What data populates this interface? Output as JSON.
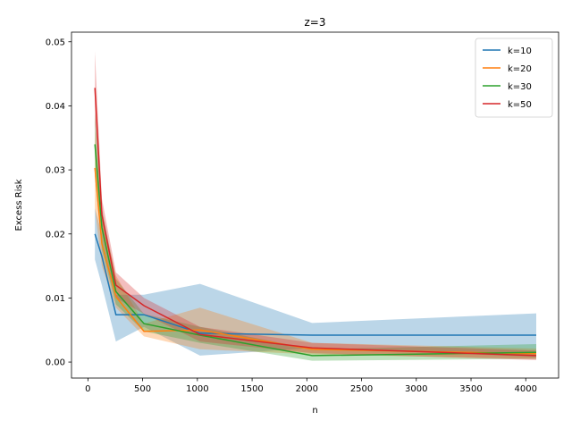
{
  "chart_data": {
    "type": "line",
    "title": "z=3",
    "xlabel": "n",
    "ylabel": "Excess Risk",
    "xlim": [
      -150,
      4300
    ],
    "ylim": [
      -0.0025,
      0.0515
    ],
    "xticks": [
      0,
      500,
      1000,
      1500,
      2000,
      2500,
      3000,
      3500,
      4000
    ],
    "xtick_labels": [
      "0",
      "500",
      "1000",
      "1500",
      "2000",
      "2500",
      "3000",
      "3500",
      "4000"
    ],
    "yticks": [
      0.0,
      0.01,
      0.02,
      0.03,
      0.04,
      0.05
    ],
    "ytick_labels": [
      "0.00",
      "0.01",
      "0.02",
      "0.03",
      "0.04",
      "0.05"
    ],
    "grid": false,
    "legend_position": "top-right",
    "x": [
      64,
      128,
      256,
      512,
      1024,
      2048,
      4096
    ],
    "series": [
      {
        "name": "k=10",
        "color": "#1f77b4",
        "values": [
          0.02,
          0.0165,
          0.0074,
          0.0074,
          0.0045,
          0.0042,
          0.0042
        ],
        "lower": [
          0.016,
          0.012,
          0.0032,
          0.0055,
          0.001,
          0.0022,
          0.0008
        ],
        "upper": [
          0.024,
          0.02,
          0.0105,
          0.0105,
          0.0122,
          0.0061,
          0.0076
        ]
      },
      {
        "name": "k=20",
        "color": "#ff7f0e",
        "values": [
          0.0303,
          0.0185,
          0.0102,
          0.0048,
          0.005,
          0.002,
          0.0013
        ],
        "lower": [
          0.024,
          0.015,
          0.0085,
          0.004,
          0.002,
          0.0012,
          0.0005
        ],
        "upper": [
          0.036,
          0.023,
          0.0135,
          0.006,
          0.0085,
          0.003,
          0.0021
        ]
      },
      {
        "name": "k=30",
        "color": "#2ca02c",
        "values": [
          0.034,
          0.021,
          0.011,
          0.006,
          0.0042,
          0.001,
          0.0015
        ],
        "lower": [
          0.029,
          0.0175,
          0.009,
          0.0048,
          0.003,
          0.0002,
          0.0005
        ],
        "upper": [
          0.039,
          0.024,
          0.013,
          0.0075,
          0.0055,
          0.002,
          0.0028
        ]
      },
      {
        "name": "k=50",
        "color": "#d62728",
        "values": [
          0.0428,
          0.023,
          0.012,
          0.0088,
          0.0043,
          0.0022,
          0.001
        ],
        "lower": [
          0.037,
          0.02,
          0.01,
          0.0075,
          0.0032,
          0.0014,
          0.0003
        ],
        "upper": [
          0.0485,
          0.0255,
          0.014,
          0.01,
          0.0055,
          0.003,
          0.0018
        ]
      }
    ]
  }
}
